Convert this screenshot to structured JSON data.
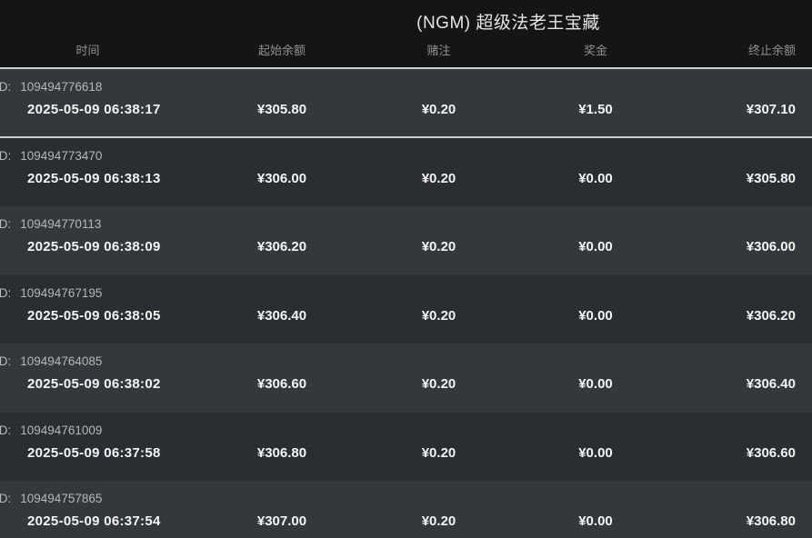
{
  "title": "(NGM) 超级法老王宝藏",
  "columns": {
    "time": "时间",
    "start_balance": "起始余额",
    "bet": "赌注",
    "prize": "奖金",
    "end_balance": "终止余额"
  },
  "id_label": "ID:",
  "rows": [
    {
      "id": "109494776618",
      "time": "2025-05-09 06:38:17",
      "start": "¥305.80",
      "bet": "¥0.20",
      "prize": "¥1.50",
      "end": "¥307.10"
    },
    {
      "id": "109494773470",
      "time": "2025-05-09 06:38:13",
      "start": "¥306.00",
      "bet": "¥0.20",
      "prize": "¥0.00",
      "end": "¥305.80"
    },
    {
      "id": "109494770113",
      "time": "2025-05-09 06:38:09",
      "start": "¥306.20",
      "bet": "¥0.20",
      "prize": "¥0.00",
      "end": "¥306.00"
    },
    {
      "id": "109494767195",
      "time": "2025-05-09 06:38:05",
      "start": "¥306.40",
      "bet": "¥0.20",
      "prize": "¥0.00",
      "end": "¥306.20"
    },
    {
      "id": "109494764085",
      "time": "2025-05-09 06:38:02",
      "start": "¥306.60",
      "bet": "¥0.20",
      "prize": "¥0.00",
      "end": "¥306.40"
    },
    {
      "id": "109494761009",
      "time": "2025-05-09 06:37:58",
      "start": "¥306.80",
      "bet": "¥0.20",
      "prize": "¥0.00",
      "end": "¥306.60"
    },
    {
      "id": "109494757865",
      "time": "2025-05-09 06:37:54",
      "start": "¥307.00",
      "bet": "¥0.20",
      "prize": "¥0.00",
      "end": "¥306.80"
    }
  ],
  "colors": {
    "header_bg": "#141517",
    "row_light": "#34373b",
    "row_dark": "#2a2d31",
    "divider": "#ccced0",
    "text_primary": "#f3f4f5",
    "text_secondary": "#b5b7b9",
    "text_header": "#8f9193",
    "title_color": "#e4e5e6"
  }
}
